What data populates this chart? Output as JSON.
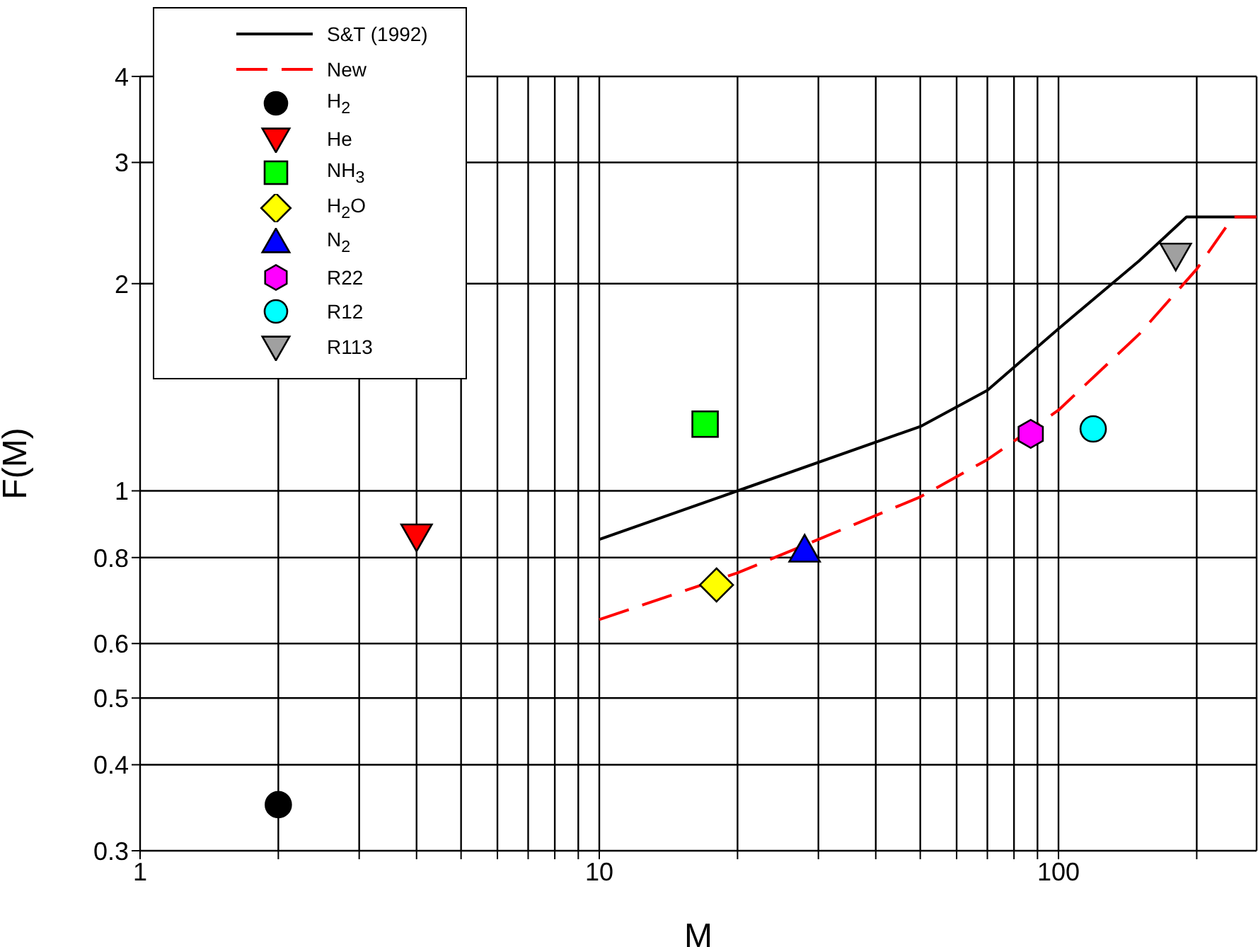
{
  "chart_data": {
    "type": "scatter",
    "xlabel": "M",
    "ylabel": "F(M)",
    "log": "xy",
    "grid": true,
    "legend": "top left",
    "xlim": [
      1,
      270
    ],
    "xticks": [
      1,
      {
        "value": 2,
        "label": null
      },
      {
        "value": 3,
        "label": null
      },
      {
        "value": 4,
        "label": null
      },
      {
        "value": 5,
        "label": null
      },
      {
        "value": 6,
        "label": null
      },
      {
        "value": 7,
        "label": null
      },
      {
        "value": 8,
        "label": null
      },
      {
        "value": 9,
        "label": null
      },
      10,
      {
        "value": 20,
        "label": null
      },
      {
        "value": 30,
        "label": null
      },
      {
        "value": 40,
        "label": null
      },
      {
        "value": 50,
        "label": null
      },
      {
        "value": 60,
        "label": null
      },
      {
        "value": 70,
        "label": null
      },
      {
        "value": 80,
        "label": null
      },
      {
        "value": 90,
        "label": null
      },
      100,
      {
        "value": 200,
        "label": null
      }
    ],
    "ylim": [
      0.3,
      4
    ],
    "yticks": [
      0.3,
      0.4,
      0.5,
      0.6,
      0.8,
      1,
      2,
      3,
      4
    ],
    "series": [
      {
        "name": "S&T (1992)",
        "type": "line",
        "color": "#000000",
        "line_style": "solid",
        "marker": "none",
        "x": [
          10,
          20,
          50,
          70,
          100,
          150,
          190,
          200,
          270
        ],
        "values": [
          0.85,
          1.0,
          1.24,
          1.4,
          1.72,
          2.16,
          2.5,
          2.5,
          2.5
        ]
      },
      {
        "name": "New",
        "type": "line",
        "color": "#ff0000",
        "line_style": "dashed",
        "marker": "none",
        "x": [
          10,
          20,
          30,
          50,
          70,
          100,
          150,
          200,
          240,
          270
        ],
        "values": [
          0.65,
          0.76,
          0.85,
          0.98,
          1.11,
          1.31,
          1.69,
          2.1,
          2.5,
          2.5
        ]
      },
      {
        "name": "H$_{2}$",
        "type": "scatter",
        "color": "#000000",
        "marker": "circle",
        "x": [
          2
        ],
        "values": [
          0.35
        ]
      },
      {
        "name": "He",
        "type": "scatter",
        "color": "#ff0000",
        "marker": "triangle-down",
        "x": [
          4
        ],
        "values": [
          0.86
        ]
      },
      {
        "name": "NH$_{3}$",
        "type": "scatter",
        "color": "#00ff00",
        "marker": "square",
        "x": [
          17
        ],
        "values": [
          1.25
        ]
      },
      {
        "name": "H$_{2}$O",
        "type": "scatter",
        "color": "#ffff00",
        "marker": "diamond",
        "x": [
          18
        ],
        "values": [
          0.73
        ]
      },
      {
        "name": "N$_{2}$",
        "type": "scatter",
        "color": "#0000ff",
        "marker": "triangle",
        "x": [
          28
        ],
        "values": [
          0.82
        ]
      },
      {
        "name": "R22",
        "color": "#ff00ff",
        "x": [
          87
        ],
        "values": [
          1.21
        ]
      },
      {
        "name": "R12",
        "type": "scatter",
        "color": "#00ffff",
        "marker": "circle",
        "x": [
          119
        ],
        "values": [
          1.23
        ]
      },
      {
        "name": "R113",
        "type": "scatter",
        "color": "#a0a0a0",
        "marker": "triangle-down",
        "x": [
          180
        ],
        "values": [
          2.2
        ]
      }
    ]
  }
}
